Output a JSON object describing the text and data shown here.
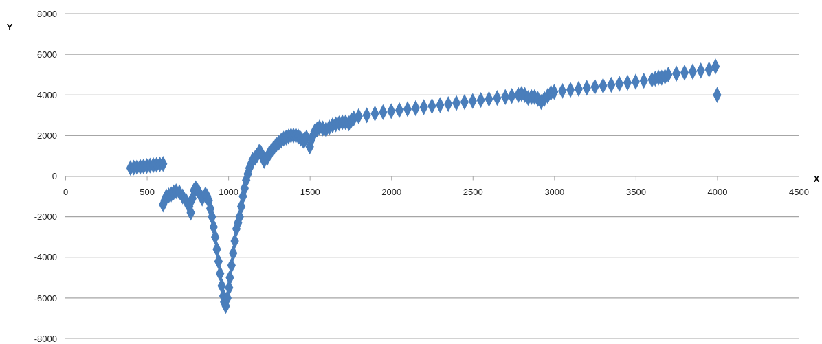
{
  "chart_data": {
    "type": "scatter",
    "xlabel": "X",
    "ylabel": "Y",
    "xlim": [
      0,
      4500
    ],
    "xticks": [
      0,
      500,
      1000,
      1500,
      2000,
      2500,
      3000,
      3500,
      4000,
      4500
    ],
    "ylim": [
      -8000,
      8000
    ],
    "yticks": [
      -8000,
      -6000,
      -4000,
      -2000,
      0,
      2000,
      4000,
      6000,
      8000
    ],
    "grid": "y",
    "marker": "diamond",
    "series": [
      {
        "color": "#4a7ebb",
        "x": [
          400,
          420,
          440,
          460,
          480,
          500,
          520,
          540,
          560,
          580,
          600,
          600,
          610,
          620,
          635,
          650,
          665,
          680,
          700,
          720,
          740,
          760,
          770,
          780,
          790,
          800,
          810,
          820,
          840,
          860,
          870,
          880,
          890,
          900,
          910,
          920,
          930,
          940,
          950,
          960,
          970,
          975,
          985,
          995,
          1005,
          1010,
          1020,
          1030,
          1040,
          1050,
          1060,
          1070,
          1080,
          1090,
          1100,
          1110,
          1120,
          1130,
          1140,
          1150,
          1165,
          1175,
          1190,
          1200,
          1210,
          1220,
          1240,
          1250,
          1265,
          1280,
          1295,
          1310,
          1325,
          1340,
          1355,
          1370,
          1385,
          1400,
          1415,
          1430,
          1445,
          1460,
          1470,
          1480,
          1500,
          1510,
          1520,
          1530,
          1545,
          1560,
          1580,
          1600,
          1620,
          1640,
          1660,
          1680,
          1700,
          1720,
          1740,
          1755,
          1770,
          1800,
          1850,
          1900,
          1950,
          2000,
          2050,
          2100,
          2150,
          2200,
          2250,
          2300,
          2350,
          2400,
          2450,
          2500,
          2550,
          2600,
          2650,
          2700,
          2740,
          2780,
          2800,
          2820,
          2840,
          2860,
          2880,
          2900,
          2920,
          2940,
          2960,
          2980,
          3000,
          3050,
          3100,
          3150,
          3200,
          3250,
          3300,
          3350,
          3400,
          3450,
          3500,
          3550,
          3600,
          3620,
          3640,
          3660,
          3680,
          3700,
          3750,
          3800,
          3850,
          3900,
          3950,
          3990,
          4000
        ],
        "values": [
          400,
          420,
          440,
          460,
          480,
          500,
          520,
          540,
          560,
          580,
          600,
          -1400,
          -1200,
          -1000,
          -950,
          -900,
          -800,
          -750,
          -800,
          -1000,
          -1200,
          -1500,
          -1800,
          -1100,
          -700,
          -600,
          -700,
          -800,
          -1100,
          -900,
          -1000,
          -1200,
          -1600,
          -2000,
          -2500,
          -3000,
          -3600,
          -4200,
          -4800,
          -5400,
          -5900,
          -6200,
          -6400,
          -6000,
          -5500,
          -5000,
          -4400,
          -3800,
          -3200,
          -2600,
          -2300,
          -2000,
          -1500,
          -1000,
          -600,
          -200,
          100,
          400,
          600,
          800,
          900,
          1000,
          1200,
          1150,
          1000,
          750,
          900,
          1100,
          1250,
          1400,
          1550,
          1650,
          1750,
          1850,
          1900,
          1950,
          2000,
          2000,
          2000,
          1950,
          1850,
          1750,
          1800,
          1900,
          1450,
          1800,
          2000,
          2200,
          2300,
          2400,
          2350,
          2300,
          2400,
          2500,
          2550,
          2600,
          2650,
          2650,
          2600,
          2750,
          2850,
          2950,
          3000,
          3080,
          3150,
          3200,
          3250,
          3300,
          3350,
          3400,
          3450,
          3500,
          3550,
          3600,
          3650,
          3700,
          3750,
          3800,
          3850,
          3900,
          3950,
          4000,
          4050,
          4000,
          3850,
          3900,
          3900,
          3800,
          3650,
          3800,
          3950,
          4100,
          4150,
          4200,
          4250,
          4300,
          4350,
          4400,
          4450,
          4500,
          4550,
          4600,
          4650,
          4700,
          4750,
          4800,
          4850,
          4850,
          4900,
          5000,
          5050,
          5100,
          5150,
          5200,
          5250,
          5400,
          4000
        ]
      }
    ]
  }
}
